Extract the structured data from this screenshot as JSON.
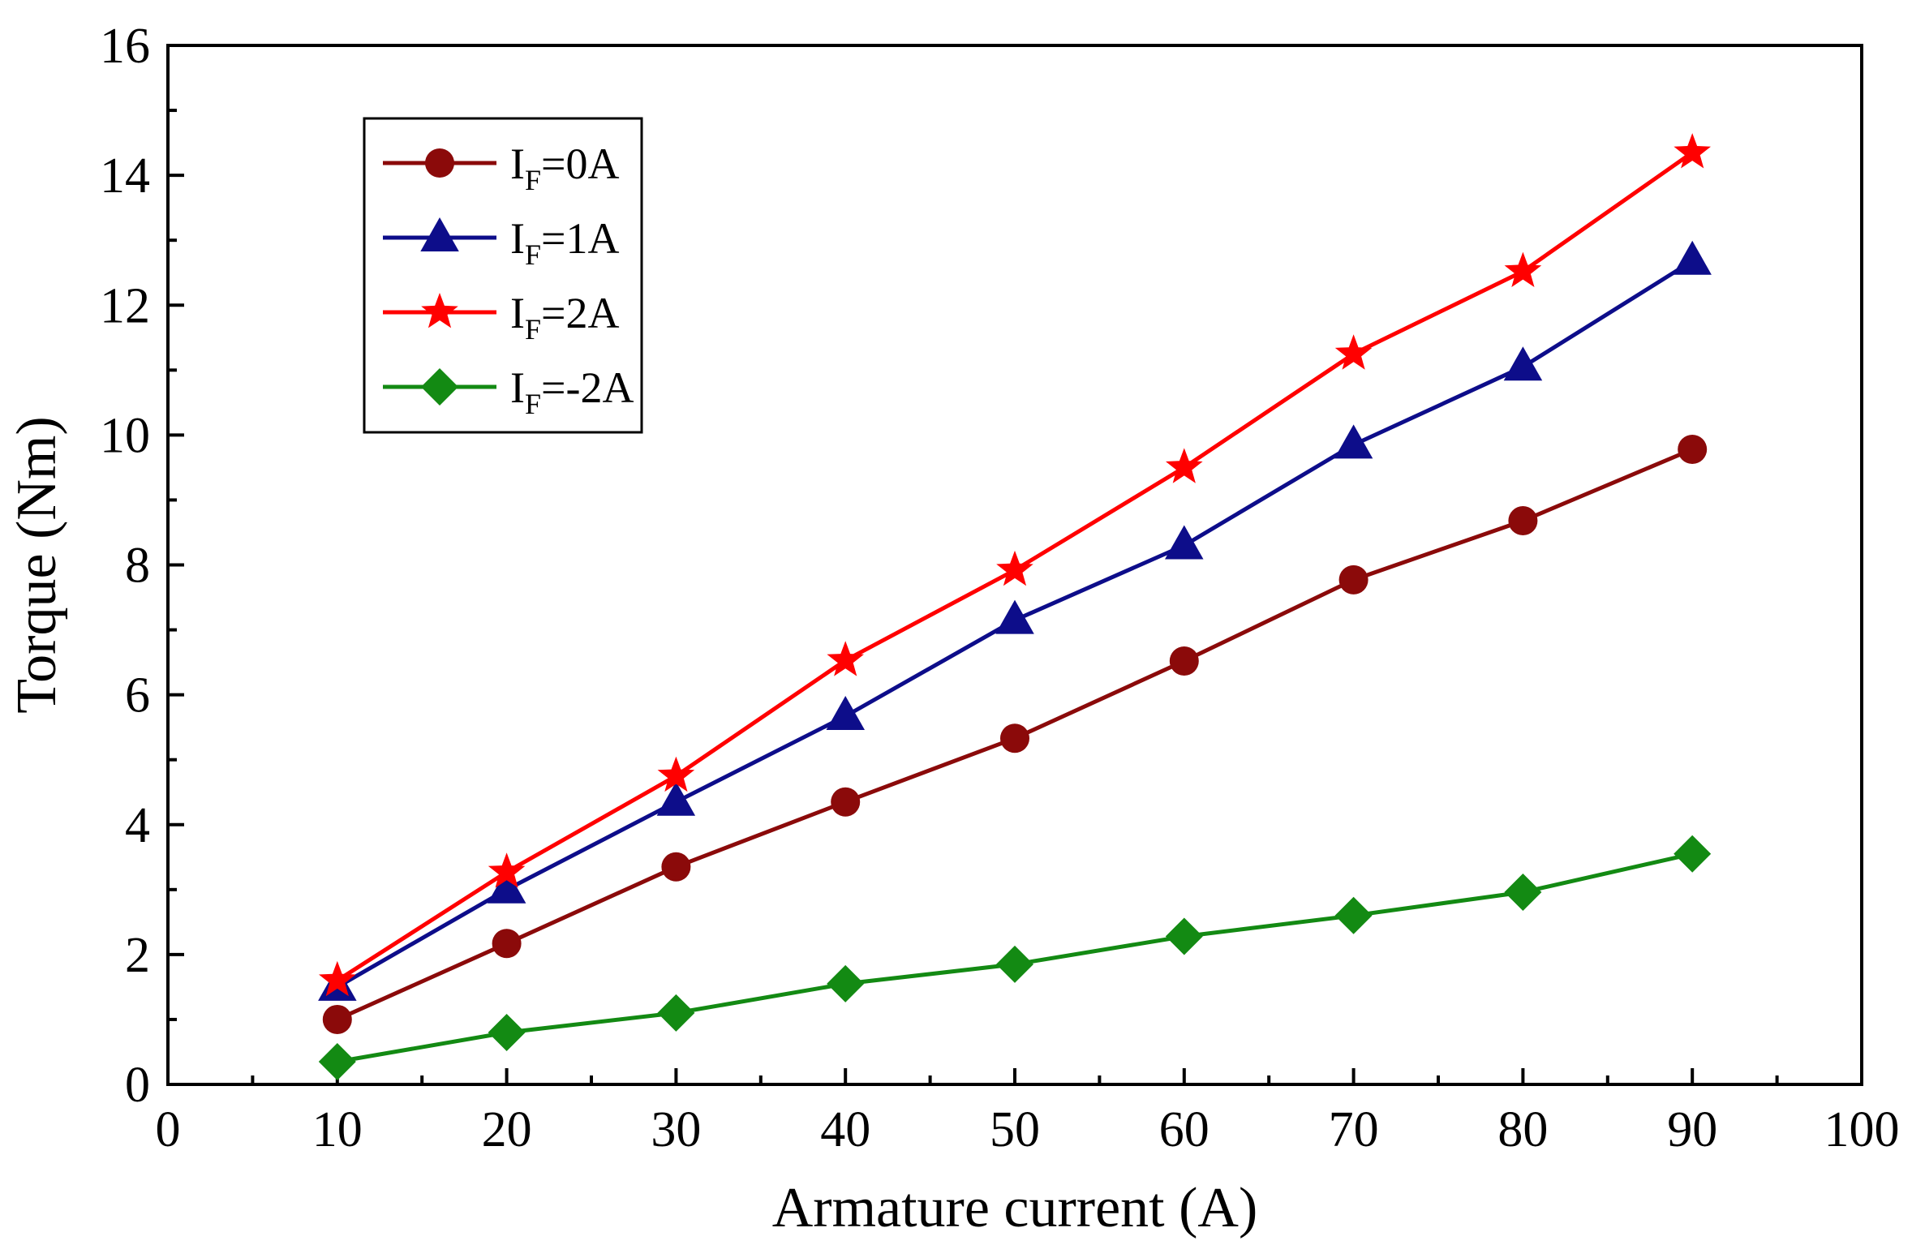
{
  "chart_data": {
    "type": "line",
    "title": "",
    "xlabel": "Armature current (A)",
    "ylabel": "Torque (Nm)",
    "xlim": [
      0,
      100
    ],
    "ylim": [
      0,
      16
    ],
    "xticks": [
      0,
      10,
      20,
      30,
      40,
      50,
      60,
      70,
      80,
      90,
      100
    ],
    "yticks": [
      0,
      2,
      4,
      6,
      8,
      10,
      12,
      14,
      16
    ],
    "grid": false,
    "legend_position": "top-left",
    "x": [
      10,
      20,
      30,
      40,
      50,
      60,
      70,
      80,
      90
    ],
    "series": [
      {
        "name": "I_F=0A",
        "label_main": "I",
        "label_sub": "F",
        "label_rest": "=0A",
        "color": "#8b0a0a",
        "marker": "circle",
        "values": [
          1.0,
          2.17,
          3.35,
          4.35,
          5.33,
          6.52,
          7.77,
          8.68,
          9.78
        ]
      },
      {
        "name": "I_F=1A",
        "label_main": "I",
        "label_sub": "F",
        "label_rest": "=1A",
        "color": "#0d0d8a",
        "marker": "triangle",
        "values": [
          1.5,
          3.0,
          4.35,
          5.67,
          7.15,
          8.3,
          9.85,
          11.05,
          12.68
        ]
      },
      {
        "name": "I_F=2A",
        "label_main": "I",
        "label_sub": "F",
        "label_rest": "=2A",
        "color": "#ff0000",
        "marker": "star",
        "values": [
          1.6,
          3.27,
          4.75,
          6.53,
          7.92,
          9.5,
          11.25,
          12.52,
          14.35
        ]
      },
      {
        "name": "I_F=-2A",
        "label_main": "I",
        "label_sub": "F",
        "label_rest": "=-2A",
        "color": "#138a13",
        "marker": "diamond",
        "values": [
          0.35,
          0.8,
          1.1,
          1.55,
          1.85,
          2.28,
          2.6,
          2.96,
          3.55
        ]
      }
    ]
  }
}
